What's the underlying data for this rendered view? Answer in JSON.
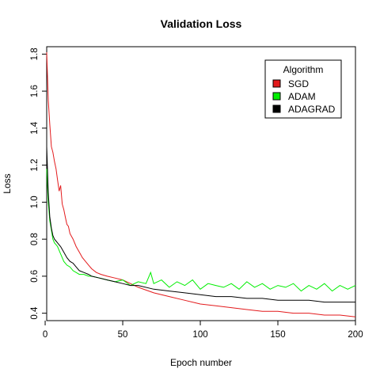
{
  "chart_data": {
    "type": "line",
    "title": "Validation Loss",
    "xlabel": "Epoch number",
    "ylabel": "Loss",
    "xlim": [
      1,
      200
    ],
    "ylim": [
      0.36,
      1.84
    ],
    "x_ticks": [
      0,
      50,
      100,
      150,
      200
    ],
    "x_tick_labels": [
      "0",
      "50",
      "100",
      "150",
      "200"
    ],
    "y_ticks": [
      0.4,
      0.6,
      0.8,
      1.0,
      1.2,
      1.4,
      1.6,
      1.8
    ],
    "y_tick_labels": [
      "0.4",
      "0.6",
      "0.8",
      "1.0",
      "1.2",
      "1.4",
      "1.6",
      "1.8"
    ],
    "grid": false,
    "legend": {
      "title": "Algorithm",
      "placement": "top-right",
      "entries": [
        "SGD",
        "ADAM",
        "ADAGRAD"
      ]
    },
    "series": [
      {
        "name": "SGD",
        "color": "#e31a1c",
        "x": [
          1,
          2,
          3,
          4,
          5,
          6,
          7,
          8,
          9,
          10,
          11,
          12,
          13,
          14,
          15,
          16,
          18,
          20,
          22,
          24,
          26,
          28,
          30,
          33,
          36,
          40,
          45,
          50,
          55,
          60,
          70,
          80,
          90,
          100,
          110,
          120,
          130,
          140,
          150,
          160,
          170,
          180,
          190,
          200
        ],
        "y": [
          1.81,
          1.55,
          1.42,
          1.3,
          1.27,
          1.22,
          1.18,
          1.12,
          1.06,
          1.09,
          0.99,
          0.96,
          0.92,
          0.88,
          0.87,
          0.83,
          0.8,
          0.76,
          0.73,
          0.7,
          0.68,
          0.66,
          0.64,
          0.62,
          0.61,
          0.6,
          0.59,
          0.58,
          0.56,
          0.54,
          0.51,
          0.49,
          0.47,
          0.45,
          0.44,
          0.43,
          0.42,
          0.41,
          0.41,
          0.4,
          0.4,
          0.39,
          0.39,
          0.38
        ]
      },
      {
        "name": "ADAM",
        "color": "#00ee00",
        "x": [
          1,
          2,
          3,
          4,
          5,
          6,
          7,
          8,
          10,
          12,
          14,
          16,
          18,
          20,
          22,
          25,
          28,
          30,
          35,
          40,
          45,
          50,
          55,
          60,
          65,
          68,
          70,
          75,
          80,
          85,
          90,
          95,
          100,
          105,
          110,
          115,
          120,
          125,
          130,
          135,
          140,
          145,
          150,
          155,
          160,
          165,
          170,
          175,
          180,
          185,
          190,
          195,
          200
        ],
        "y": [
          1.18,
          1.0,
          0.9,
          0.85,
          0.8,
          0.78,
          0.77,
          0.76,
          0.72,
          0.68,
          0.66,
          0.65,
          0.63,
          0.62,
          0.61,
          0.61,
          0.6,
          0.6,
          0.59,
          0.58,
          0.57,
          0.58,
          0.55,
          0.57,
          0.56,
          0.62,
          0.56,
          0.58,
          0.54,
          0.57,
          0.55,
          0.58,
          0.53,
          0.56,
          0.55,
          0.54,
          0.56,
          0.53,
          0.57,
          0.54,
          0.56,
          0.53,
          0.55,
          0.54,
          0.56,
          0.52,
          0.55,
          0.53,
          0.56,
          0.52,
          0.55,
          0.53,
          0.55
        ]
      },
      {
        "name": "ADAGRAD",
        "color": "#000000",
        "x": [
          1,
          2,
          3,
          4,
          5,
          6,
          7,
          8,
          10,
          12,
          14,
          16,
          18,
          20,
          22,
          25,
          28,
          30,
          35,
          40,
          45,
          50,
          55,
          60,
          70,
          80,
          90,
          100,
          110,
          120,
          130,
          140,
          150,
          160,
          170,
          180,
          190,
          200
        ],
        "y": [
          1.3,
          1.05,
          0.92,
          0.86,
          0.82,
          0.8,
          0.79,
          0.78,
          0.76,
          0.73,
          0.7,
          0.68,
          0.67,
          0.65,
          0.63,
          0.62,
          0.61,
          0.6,
          0.59,
          0.58,
          0.57,
          0.56,
          0.55,
          0.55,
          0.53,
          0.52,
          0.51,
          0.5,
          0.49,
          0.49,
          0.48,
          0.48,
          0.47,
          0.47,
          0.47,
          0.46,
          0.46,
          0.46
        ]
      }
    ]
  }
}
